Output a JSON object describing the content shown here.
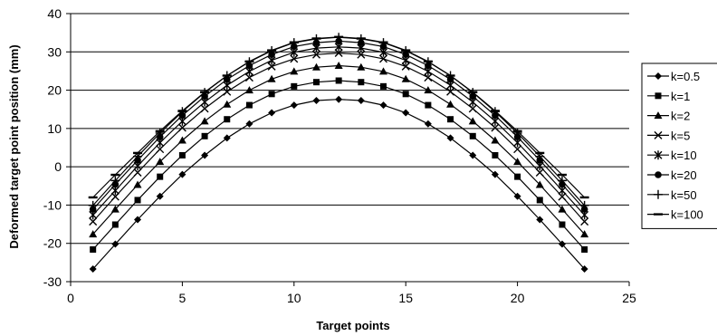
{
  "chart_data": {
    "type": "line",
    "title": "",
    "xlabel": "Target points",
    "ylabel": "Deformed target point position (mm)",
    "xlim": [
      0,
      25
    ],
    "ylim": [
      -30,
      40
    ],
    "xticks": [
      0,
      5,
      10,
      15,
      20,
      25
    ],
    "yticks": [
      -30,
      -20,
      -10,
      0,
      10,
      20,
      30,
      40
    ],
    "grid": "horizontal",
    "legend_position": "right",
    "x": [
      1,
      2,
      3,
      4,
      5,
      6,
      7,
      8,
      9,
      10,
      11,
      12,
      13,
      14,
      15,
      16,
      17,
      18,
      19,
      20,
      21,
      22,
      23
    ],
    "series": [
      {
        "name": "k=0.5",
        "marker": "diamond",
        "values": [
          -26.7,
          -20.2,
          -13.8,
          -7.7,
          -2.0,
          3.0,
          7.5,
          11.2,
          14.1,
          16.1,
          17.3,
          17.6,
          17.3,
          16.1,
          14.1,
          11.2,
          7.5,
          3.0,
          -2.0,
          -7.7,
          -13.8,
          -20.2,
          -26.7
        ]
      },
      {
        "name": "k=1",
        "marker": "square",
        "values": [
          -21.6,
          -15.1,
          -8.7,
          -2.6,
          3.0,
          8.0,
          12.4,
          16.1,
          19.0,
          21.0,
          22.1,
          22.5,
          22.1,
          21.0,
          19.0,
          16.1,
          12.4,
          8.0,
          3.0,
          -2.6,
          -8.7,
          -15.1,
          -21.6
        ]
      },
      {
        "name": "k=2",
        "marker": "triangle",
        "values": [
          -17.6,
          -11.1,
          -4.7,
          1.3,
          6.9,
          11.9,
          16.3,
          20.0,
          22.9,
          24.9,
          26.0,
          26.4,
          26.0,
          24.9,
          22.9,
          20.0,
          16.3,
          11.9,
          6.9,
          1.3,
          -4.7,
          -11.1,
          -17.6
        ]
      },
      {
        "name": "k=5",
        "marker": "x",
        "values": [
          -14.3,
          -7.8,
          -1.5,
          4.6,
          10.2,
          15.2,
          19.6,
          23.3,
          26.2,
          28.2,
          29.3,
          29.7,
          29.3,
          28.2,
          26.2,
          23.3,
          19.6,
          15.2,
          10.2,
          4.6,
          -1.5,
          -7.8,
          -14.3
        ]
      },
      {
        "name": "k=10",
        "marker": "star",
        "values": [
          -12.6,
          -6.2,
          0.2,
          6.3,
          11.9,
          16.9,
          21.3,
          24.9,
          27.8,
          29.9,
          31.0,
          31.3,
          31.0,
          29.9,
          27.8,
          24.9,
          21.3,
          16.9,
          11.9,
          6.3,
          0.2,
          -6.2,
          -12.6
        ]
      },
      {
        "name": "k=20",
        "marker": "circle",
        "values": [
          -11.1,
          -4.6,
          1.7,
          7.8,
          13.4,
          18.4,
          22.8,
          26.4,
          29.3,
          31.4,
          32.4,
          32.8,
          32.4,
          31.4,
          29.3,
          26.4,
          22.8,
          18.4,
          13.4,
          7.8,
          1.7,
          -4.6,
          -11.1
        ]
      },
      {
        "name": "k=50",
        "marker": "plus",
        "values": [
          -10.1,
          -3.6,
          2.7,
          8.8,
          14.4,
          19.4,
          23.8,
          27.4,
          30.3,
          32.4,
          33.4,
          33.8,
          33.4,
          32.4,
          30.3,
          27.4,
          23.8,
          19.4,
          14.4,
          8.8,
          2.7,
          -3.6,
          -10.1
        ]
      },
      {
        "name": "k=100",
        "marker": "dash",
        "values": [
          -8.0,
          -2.1,
          3.6,
          9.3,
          14.6,
          19.5,
          23.8,
          27.5,
          30.4,
          32.5,
          33.5,
          33.9,
          33.5,
          32.5,
          30.4,
          27.5,
          23.8,
          19.5,
          14.6,
          9.3,
          3.6,
          -2.1,
          -8.0
        ]
      }
    ]
  }
}
